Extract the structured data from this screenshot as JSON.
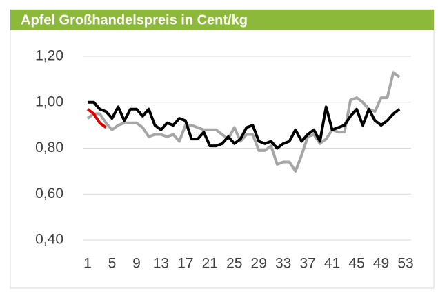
{
  "chart_data": {
    "type": "line",
    "title": "Apfel Großhandelspreis in Cent/kg",
    "x": [
      1,
      2,
      3,
      4,
      5,
      6,
      7,
      8,
      9,
      10,
      11,
      12,
      13,
      14,
      15,
      16,
      17,
      18,
      19,
      20,
      21,
      22,
      23,
      24,
      25,
      26,
      27,
      28,
      29,
      30,
      31,
      32,
      33,
      34,
      35,
      36,
      37,
      38,
      39,
      40,
      41,
      42,
      43,
      44,
      45,
      46,
      47,
      48,
      49,
      50,
      51,
      52
    ],
    "series": [
      {
        "color": "#a6a6a6",
        "values": [
          0.93,
          0.95,
          0.95,
          0.91,
          0.88,
          0.9,
          0.91,
          0.91,
          0.91,
          0.89,
          0.85,
          0.86,
          0.86,
          0.85,
          0.86,
          0.83,
          0.9,
          0.9,
          0.89,
          0.88,
          0.88,
          0.88,
          0.86,
          0.84,
          0.89,
          0.83,
          0.86,
          0.86,
          0.79,
          0.79,
          0.81,
          0.73,
          0.74,
          0.74,
          0.7,
          0.77,
          0.85,
          0.86,
          0.82,
          0.84,
          0.88,
          0.87,
          0.87,
          1.01,
          1.02,
          1.0,
          0.97,
          0.96,
          1.02,
          1.02,
          1.13,
          1.11
        ]
      },
      {
        "color": "#000000",
        "values": [
          1.0,
          1.0,
          0.97,
          0.96,
          0.93,
          0.98,
          0.92,
          0.97,
          0.97,
          0.94,
          0.97,
          0.9,
          0.88,
          0.91,
          0.9,
          0.93,
          0.92,
          0.84,
          0.84,
          0.87,
          0.81,
          0.81,
          0.82,
          0.85,
          0.82,
          0.84,
          0.89,
          0.9,
          0.83,
          0.82,
          0.83,
          0.8,
          0.82,
          0.83,
          0.88,
          0.83,
          0.86,
          0.88,
          0.83,
          0.98,
          0.88,
          0.89,
          0.9,
          0.94,
          0.97,
          0.9,
          0.97,
          0.92,
          0.9,
          0.92,
          0.95,
          0.97
        ]
      },
      {
        "color": "#e00000",
        "values": [
          0.97,
          0.95,
          0.91,
          0.89,
          null,
          null,
          null,
          null,
          null,
          null,
          null,
          null,
          null,
          null,
          null,
          null,
          null,
          null,
          null,
          null,
          null,
          null,
          null,
          null,
          null,
          null,
          null,
          null,
          null,
          null,
          null,
          null,
          null,
          null,
          null,
          null,
          null,
          null,
          null,
          null,
          null,
          null,
          null,
          null,
          null,
          null,
          null,
          null,
          null,
          null,
          null,
          null
        ]
      }
    ],
    "xlim": [
      1,
      53
    ],
    "xticks": [
      1,
      5,
      9,
      13,
      17,
      21,
      25,
      29,
      33,
      37,
      41,
      45,
      49,
      53
    ],
    "ylim": [
      0.4,
      1.2
    ],
    "yticks": [
      {
        "value": 0.4,
        "label": "0,40"
      },
      {
        "value": 0.6,
        "label": "0,60"
      },
      {
        "value": 0.8,
        "label": "0,80"
      },
      {
        "value": 1.0,
        "label": "1,00"
      },
      {
        "value": 1.2,
        "label": "1,20"
      }
    ],
    "grid": true
  }
}
